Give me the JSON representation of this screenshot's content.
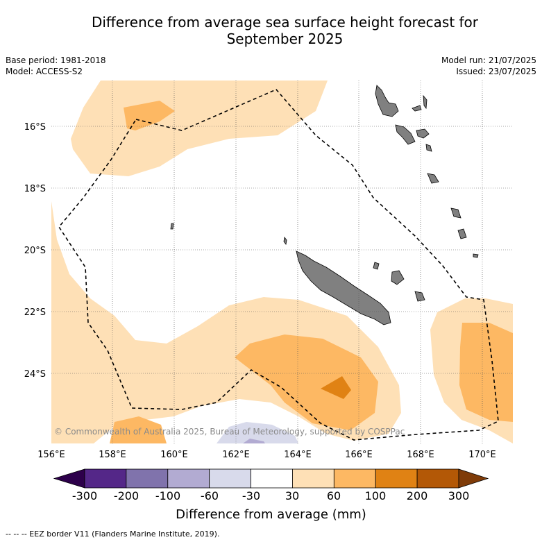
{
  "title_line1": "Difference from average sea surface height forecast for",
  "title_line2": "September 2025",
  "meta_left": [
    "Base period: 1981-2018",
    "Model: ACCESS-S2"
  ],
  "meta_right": [
    "Model run: 21/07/2025",
    "Issued: 23/07/2025"
  ],
  "copyright": "© Commonwealth of Australia 2025, Bureau of Meteorology, supported by COSPPac",
  "lat_labels": [
    "16°S",
    "18°S",
    "20°S",
    "22°S",
    "24°S"
  ],
  "lon_labels": [
    "156°E",
    "158°E",
    "160°E",
    "162°E",
    "164°E",
    "166°E",
    "168°E",
    "170°E"
  ],
  "colorbar": {
    "ticks": [
      "-300",
      "-200",
      "-100",
      "-60",
      "-30",
      "30",
      "60",
      "100",
      "200",
      "300"
    ],
    "colors": [
      "#2d004b",
      "#542788",
      "#8073ac",
      "#b2abd2",
      "#d8daeb",
      "#ffffff",
      "#fee0b6",
      "#fdb863",
      "#e08214",
      "#b35806",
      "#7f3b08"
    ],
    "label": "Difference from average (mm)"
  },
  "footnote": "--  --  -- EEZ border V11 (Flanders Marine Institute, 2019).",
  "land_color": "#808080"
}
